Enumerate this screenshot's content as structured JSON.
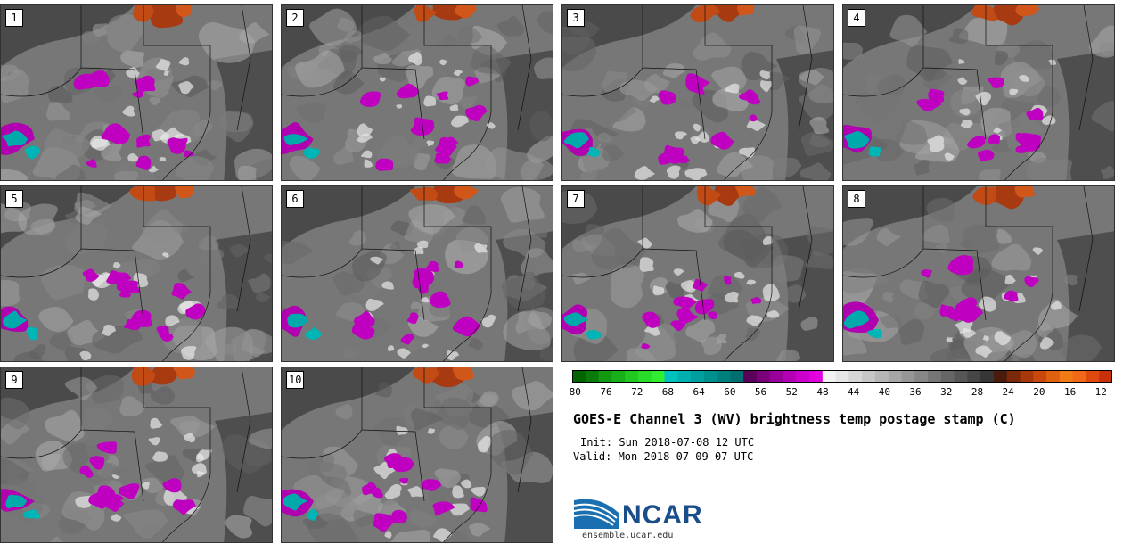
{
  "panels": [
    {
      "label": "1"
    },
    {
      "label": "2"
    },
    {
      "label": "3"
    },
    {
      "label": "4"
    },
    {
      "label": "5"
    },
    {
      "label": "6"
    },
    {
      "label": "7"
    },
    {
      "label": "8"
    },
    {
      "label": "9"
    },
    {
      "label": "10"
    }
  ],
  "colorbar": {
    "ticks": [
      "−80",
      "−76",
      "−72",
      "−68",
      "−64",
      "−60",
      "−56",
      "−52",
      "−48",
      "−44",
      "−40",
      "−36",
      "−32",
      "−28",
      "−24",
      "−20",
      "−16",
      "−12"
    ],
    "colors": [
      "#006400",
      "#0a7a0a",
      "#119911",
      "#18b018",
      "#20c820",
      "#28dc28",
      "#30ee30",
      "#00c0c0",
      "#00b0b0",
      "#009f9f",
      "#008f8f",
      "#007f7f",
      "#006f6f",
      "#5a005a",
      "#7a007a",
      "#990099",
      "#b400b4",
      "#cc00cc",
      "#e000e0",
      "#f2f2f2",
      "#e6e6e6",
      "#d6d6d6",
      "#c6c6c6",
      "#b6b6b6",
      "#a6a6a6",
      "#969696",
      "#868686",
      "#767676",
      "#666666",
      "#565656",
      "#464646",
      "#363636",
      "#4a1a0a",
      "#7a2a0a",
      "#a8380a",
      "#c8480e",
      "#e06010",
      "#f07a14",
      "#f06818",
      "#e04810",
      "#c8300a"
    ]
  },
  "title": "GOES-E Channel 3 (WV) brightness temp postage stamp (C)",
  "init_line": "Init: Sun 2018-07-08 12 UTC",
  "valid_line": "Valid: Mon 2018-07-09 07 UTC",
  "logo_text": "NCAR",
  "site": "ensemble.ucar.edu"
}
